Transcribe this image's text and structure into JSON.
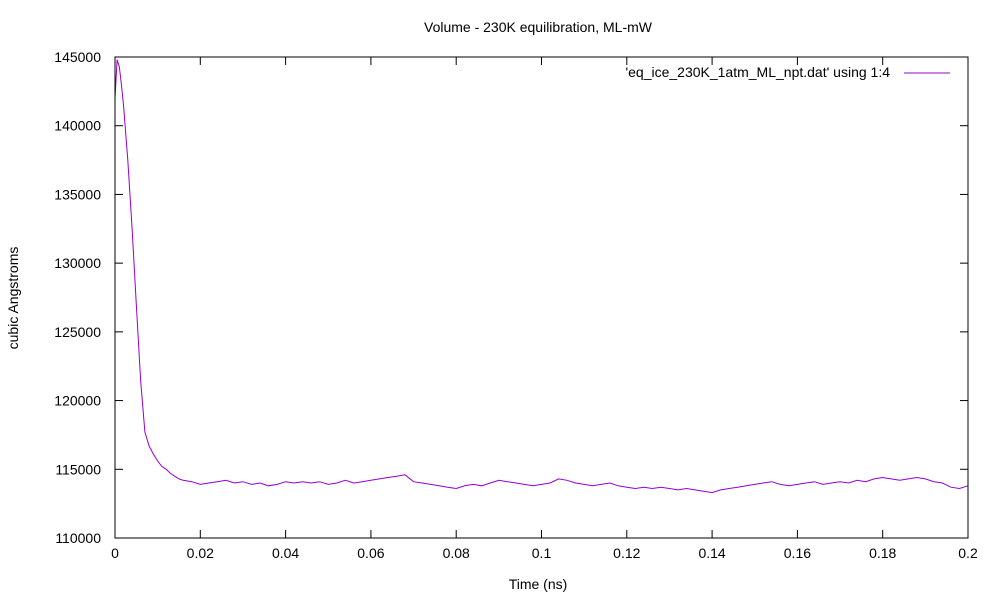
{
  "chart_data": {
    "type": "line",
    "title": "Volume - 230K equilibration, ML-mW",
    "xlabel": "Time (ns)",
    "ylabel": "cubic Angstroms",
    "xlim": [
      0,
      0.2
    ],
    "ylim": [
      110000,
      145000
    ],
    "x_ticks": [
      0,
      0.02,
      0.04,
      0.06,
      0.08,
      0.1,
      0.12,
      0.14,
      0.16,
      0.18,
      0.2
    ],
    "x_tick_labels": [
      "0",
      "0.02",
      "0.04",
      "0.06",
      "0.08",
      "0.1",
      "0.12",
      "0.14",
      "0.16",
      "0.18",
      "0.2"
    ],
    "y_ticks": [
      110000,
      115000,
      120000,
      125000,
      130000,
      135000,
      140000,
      145000
    ],
    "y_tick_labels": [
      "110000",
      "115000",
      "120000",
      "125000",
      "130000",
      "135000",
      "140000",
      "145000"
    ],
    "grid": false,
    "legend_position": "top-right",
    "series": [
      {
        "name": "'eq_ice_230K_1atm_ML_npt.dat' using 1:4",
        "color": "#9400d3",
        "x": [
          0,
          0.0005,
          0.001,
          0.0015,
          0.002,
          0.003,
          0.004,
          0.005,
          0.006,
          0.007,
          0.008,
          0.009,
          0.01,
          0.011,
          0.012,
          0.013,
          0.014,
          0.015,
          0.016,
          0.018,
          0.02,
          0.022,
          0.024,
          0.026,
          0.028,
          0.03,
          0.032,
          0.034,
          0.036,
          0.038,
          0.04,
          0.042,
          0.044,
          0.046,
          0.048,
          0.05,
          0.052,
          0.054,
          0.056,
          0.058,
          0.06,
          0.062,
          0.064,
          0.066,
          0.068,
          0.07,
          0.072,
          0.074,
          0.076,
          0.078,
          0.08,
          0.082,
          0.084,
          0.086,
          0.088,
          0.09,
          0.092,
          0.094,
          0.096,
          0.098,
          0.1,
          0.102,
          0.104,
          0.106,
          0.108,
          0.11,
          0.112,
          0.114,
          0.116,
          0.118,
          0.12,
          0.122,
          0.124,
          0.126,
          0.128,
          0.13,
          0.132,
          0.134,
          0.136,
          0.138,
          0.14,
          0.142,
          0.144,
          0.146,
          0.148,
          0.15,
          0.152,
          0.154,
          0.156,
          0.158,
          0.16,
          0.162,
          0.164,
          0.166,
          0.168,
          0.17,
          0.172,
          0.174,
          0.176,
          0.178,
          0.18,
          0.182,
          0.184,
          0.186,
          0.188,
          0.19,
          0.192,
          0.194,
          0.196,
          0.198,
          0.2
        ],
        "y": [
          142000,
          144800,
          144300,
          143000,
          141500,
          137500,
          132500,
          127000,
          121500,
          117700,
          116700,
          116100,
          115600,
          115200,
          115000,
          114700,
          114500,
          114300,
          114200,
          114100,
          113900,
          114000,
          114100,
          114200,
          114000,
          114100,
          113900,
          114000,
          113800,
          113900,
          114100,
          114000,
          114100,
          114000,
          114100,
          113900,
          114000,
          114200,
          114000,
          114100,
          114200,
          114300,
          114400,
          114500,
          114600,
          114100,
          114000,
          113900,
          113800,
          113700,
          113600,
          113800,
          113900,
          113800,
          114000,
          114200,
          114100,
          114000,
          113900,
          113800,
          113900,
          114000,
          114300,
          114200,
          114000,
          113900,
          113800,
          113900,
          114000,
          113800,
          113700,
          113600,
          113700,
          113600,
          113700,
          113600,
          113500,
          113600,
          113500,
          113400,
          113300,
          113500,
          113600,
          113700,
          113800,
          113900,
          114000,
          114100,
          113900,
          113800,
          113900,
          114000,
          114100,
          113900,
          114000,
          114100,
          114000,
          114200,
          114100,
          114300,
          114400,
          114300,
          114200,
          114300,
          114400,
          114300,
          114100,
          114000,
          113700,
          113600,
          113800
        ]
      }
    ]
  }
}
